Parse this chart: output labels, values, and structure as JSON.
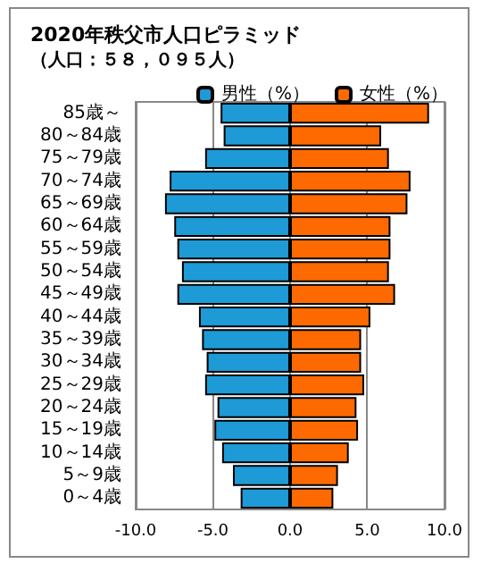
{
  "chart_data": {
    "type": "bar",
    "orientation": "horizontal",
    "stacked": true,
    "title": "2020年秩父市人口ピラミッド",
    "subtitle": "（人口：５８，０９５人）",
    "categories": [
      "85歳～",
      "80～84歳",
      "75～79歳",
      "70～74歳",
      "65～69歳",
      "60～64歳",
      "55～59歳",
      "50～54歳",
      "45～49歳",
      "40～44歳",
      "35～39歳",
      "30～34歳",
      "25～29歳",
      "20～24歳",
      "15～19歳",
      "10～14歳",
      "5～9歳",
      "0～4歳"
    ],
    "series": [
      {
        "name": "男性（%）",
        "color": "#1e9ad6",
        "values": [
          -4.5,
          -4.3,
          -5.5,
          -7.8,
          -8.1,
          -7.5,
          -7.3,
          -7.0,
          -7.3,
          -5.9,
          -5.7,
          -5.4,
          -5.5,
          -4.7,
          -4.9,
          -4.4,
          -3.7,
          -3.2
        ]
      },
      {
        "name": "女性（%）",
        "color": "#ff6a00",
        "values": [
          9.0,
          5.9,
          6.4,
          7.8,
          7.6,
          6.5,
          6.5,
          6.4,
          6.8,
          5.2,
          4.6,
          4.6,
          4.8,
          4.3,
          4.4,
          3.8,
          3.1,
          2.8
        ]
      }
    ],
    "xlim": [
      -10,
      10
    ],
    "xticks": [
      {
        "value": -10,
        "label": "-10.0"
      },
      {
        "value": -5,
        "label": "-5.0"
      },
      {
        "value": 0,
        "label": "0.0"
      },
      {
        "value": 5,
        "label": "5.0"
      },
      {
        "value": 10,
        "label": "10.0"
      }
    ],
    "grid": "x",
    "legend": "top right"
  }
}
